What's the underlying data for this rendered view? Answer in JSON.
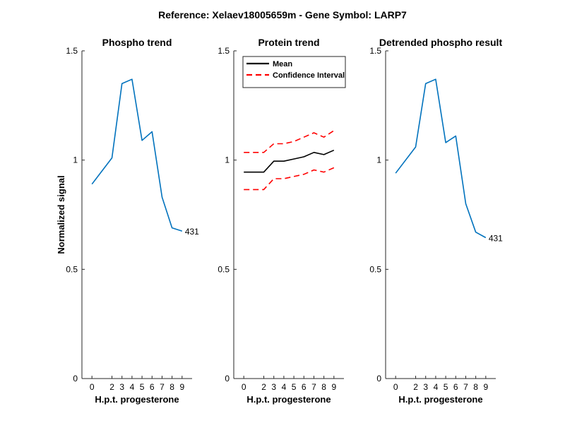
{
  "figure": {
    "suptitle": "Reference:  Xelaev18005659m - Gene Symbol:  LARP7"
  },
  "chart_data": [
    {
      "type": "line",
      "title": "Phospho trend",
      "xlabel": "H.p.t. progesterone",
      "ylabel": "Normalized signal",
      "x": [
        0,
        2,
        3,
        4,
        5,
        6,
        7,
        8,
        9
      ],
      "x_tick_labels": [
        "0",
        "2",
        "3",
        "4",
        "5",
        "6",
        "7",
        "8",
        "9"
      ],
      "ylim": [
        0,
        1.5
      ],
      "y_ticks": [
        0,
        0.5,
        1,
        1.5
      ],
      "y_tick_labels": [
        "0",
        "0.5",
        "1",
        "1.5"
      ],
      "grid": false,
      "series": [
        {
          "color": "#0072BD",
          "style": "solid",
          "values": [
            0.89,
            1.01,
            1.35,
            1.37,
            1.09,
            1.13,
            0.83,
            0.69,
            0.675
          ]
        }
      ],
      "annotations": [
        {
          "text": "431"
        }
      ]
    },
    {
      "type": "line",
      "title": "Protein trend",
      "xlabel": "H.p.t. progesterone",
      "ylabel": "",
      "x": [
        0,
        2,
        3,
        4,
        5,
        6,
        7,
        8,
        9
      ],
      "x_tick_labels": [
        "0",
        "2",
        "3",
        "4",
        "5",
        "6",
        "7",
        "8",
        "9"
      ],
      "ylim": [
        0,
        1.5
      ],
      "y_ticks": [
        0,
        0.5,
        1,
        1.5
      ],
      "y_tick_labels": [
        "0",
        "0.5",
        "1",
        "1.5"
      ],
      "grid": false,
      "legend_position": "top-left",
      "series": [
        {
          "name": "Mean",
          "color": "#000000",
          "style": "solid",
          "values": [
            0.945,
            0.945,
            0.995,
            0.995,
            1.005,
            1.015,
            1.035,
            1.025,
            1.045
          ]
        },
        {
          "name": "Confidence Interval",
          "color": "#FF0000",
          "style": "dashed",
          "values": [
            1.035,
            1.035,
            1.075,
            1.075,
            1.085,
            1.105,
            1.125,
            1.105,
            1.135
          ]
        },
        {
          "name": "",
          "color": "#FF0000",
          "style": "dashed",
          "values": [
            0.865,
            0.865,
            0.915,
            0.915,
            0.925,
            0.935,
            0.955,
            0.945,
            0.965
          ]
        }
      ],
      "annotations": []
    },
    {
      "type": "line",
      "title": "Detrended phospho result",
      "xlabel": "H.p.t. progesterone",
      "ylabel": "",
      "x": [
        0,
        2,
        3,
        4,
        5,
        6,
        7,
        8,
        9
      ],
      "x_tick_labels": [
        "0",
        "2",
        "3",
        "4",
        "5",
        "6",
        "7",
        "8",
        "9"
      ],
      "ylim": [
        0,
        1.5
      ],
      "y_ticks": [
        0,
        0.5,
        1,
        1.5
      ],
      "y_tick_labels": [
        "0",
        "0.5",
        "1",
        "1.5"
      ],
      "grid": false,
      "series": [
        {
          "color": "#0072BD",
          "style": "solid",
          "values": [
            0.94,
            1.06,
            1.35,
            1.37,
            1.08,
            1.11,
            0.8,
            0.67,
            0.645
          ]
        }
      ],
      "annotations": [
        {
          "text": "431"
        }
      ]
    }
  ]
}
